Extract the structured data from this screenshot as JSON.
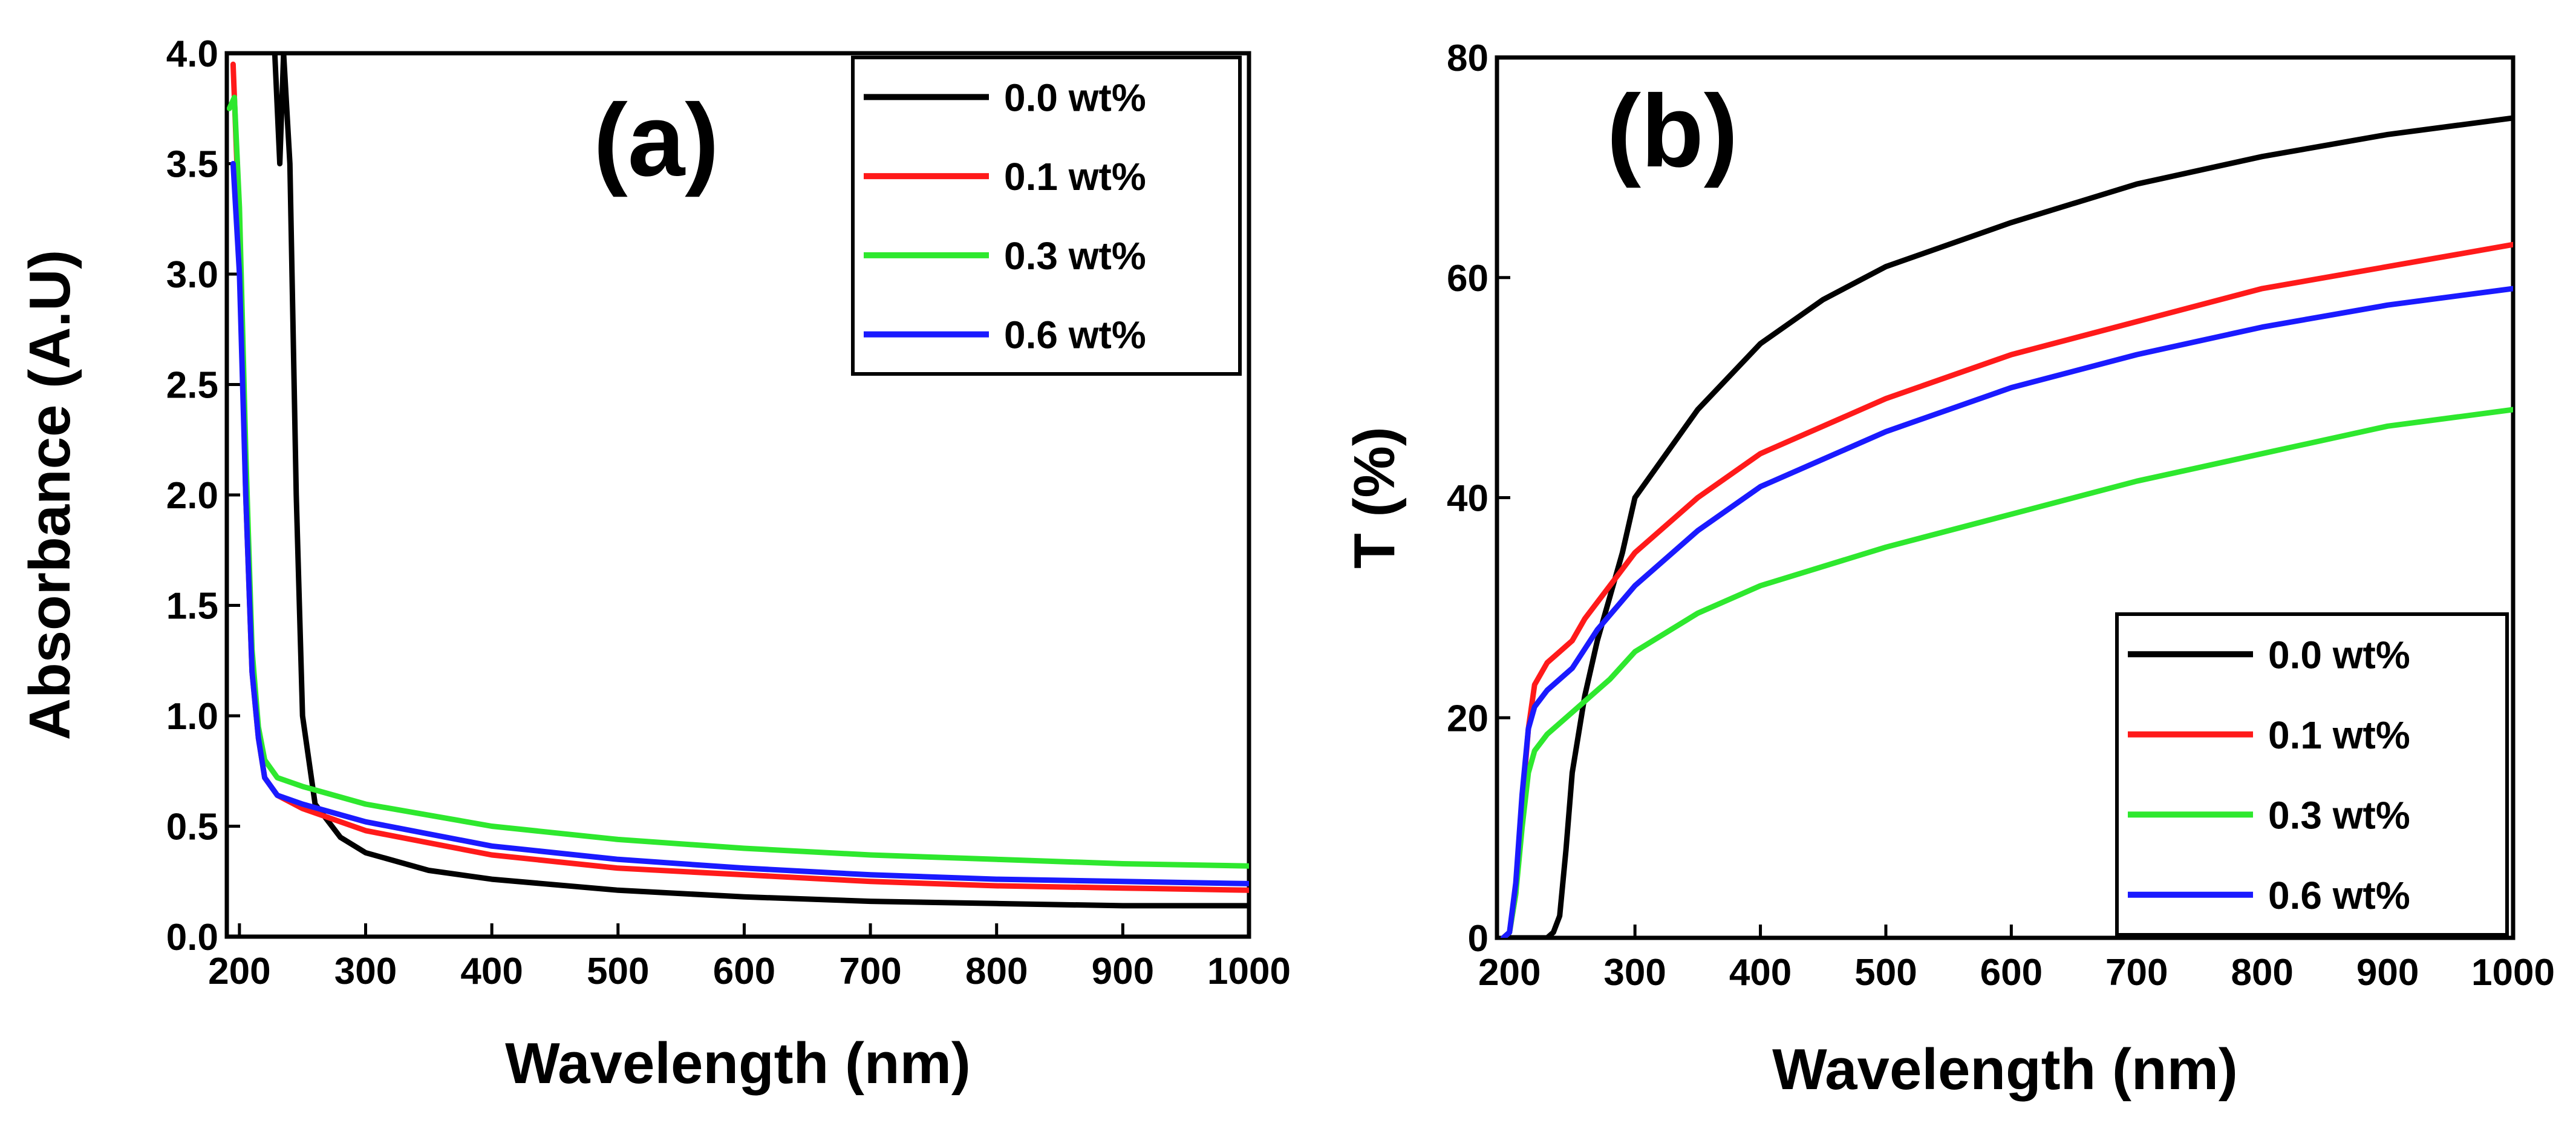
{
  "chart_data": [
    {
      "type": "line",
      "panel_label": "(a)",
      "xlabel": "Wavelength (nm)",
      "ylabel": "Absorbance (A.U)",
      "xlim": [
        190,
        1000
      ],
      "ylim": [
        0,
        4
      ],
      "x_ticks": [
        200,
        300,
        400,
        500,
        600,
        700,
        800,
        900,
        1000
      ],
      "y_ticks": [
        0.0,
        0.5,
        1.0,
        1.5,
        2.0,
        2.5,
        3.0,
        3.5,
        4.0
      ],
      "legend_position": "top-right",
      "series": [
        {
          "name": "0.0 wt%",
          "color": "#000000",
          "x": [
            228,
            232,
            235,
            240,
            245,
            250,
            260,
            280,
            300,
            350,
            400,
            500,
            600,
            700,
            800,
            900,
            1000
          ],
          "y": [
            4.0,
            3.5,
            4.0,
            3.5,
            2.0,
            1.0,
            0.6,
            0.45,
            0.38,
            0.3,
            0.26,
            0.21,
            0.18,
            0.16,
            0.15,
            0.14,
            0.14
          ]
        },
        {
          "name": "0.1 wt%",
          "color": "#ff1a1a",
          "x": [
            195,
            200,
            205,
            210,
            215,
            220,
            230,
            250,
            300,
            400,
            500,
            600,
            700,
            800,
            900,
            1000
          ],
          "y": [
            3.95,
            3.2,
            2.0,
            1.2,
            0.9,
            0.72,
            0.64,
            0.58,
            0.48,
            0.37,
            0.31,
            0.28,
            0.25,
            0.23,
            0.22,
            0.21
          ]
        },
        {
          "name": "0.3 wt%",
          "color": "#2ee82e",
          "x": [
            192,
            196,
            200,
            205,
            210,
            215,
            220,
            230,
            250,
            300,
            400,
            500,
            600,
            700,
            800,
            900,
            1000
          ],
          "y": [
            3.75,
            3.8,
            3.3,
            2.2,
            1.3,
            0.95,
            0.8,
            0.72,
            0.68,
            0.6,
            0.5,
            0.44,
            0.4,
            0.37,
            0.35,
            0.33,
            0.32
          ]
        },
        {
          "name": "0.6 wt%",
          "color": "#1a1aff",
          "x": [
            195,
            200,
            205,
            210,
            215,
            220,
            230,
            250,
            300,
            400,
            500,
            600,
            700,
            800,
            900,
            1000
          ],
          "y": [
            3.5,
            3.0,
            2.0,
            1.2,
            0.9,
            0.72,
            0.64,
            0.6,
            0.52,
            0.41,
            0.35,
            0.31,
            0.28,
            0.26,
            0.25,
            0.24
          ]
        }
      ]
    },
    {
      "type": "line",
      "panel_label": "(b)",
      "xlabel": "Wavelength (nm)",
      "ylabel": "T (%)",
      "xlim": [
        190,
        1000
      ],
      "ylim": [
        0,
        80
      ],
      "x_ticks": [
        200,
        300,
        400,
        500,
        600,
        700,
        800,
        900,
        1000
      ],
      "y_ticks": [
        0,
        20,
        40,
        60,
        80
      ],
      "legend_position": "bottom-right",
      "series": [
        {
          "name": "0.0 wt%",
          "color": "#000000",
          "x": [
            195,
            230,
            235,
            240,
            245,
            250,
            260,
            270,
            280,
            290,
            300,
            350,
            400,
            450,
            500,
            600,
            700,
            800,
            900,
            1000
          ],
          "y": [
            0,
            0,
            0.5,
            2,
            8,
            15,
            22,
            27,
            31,
            35,
            40,
            48,
            54,
            58,
            61,
            65,
            68.5,
            71,
            73,
            74.5
          ]
        },
        {
          "name": "0.1 wt%",
          "color": "#ff1a1a",
          "x": [
            195,
            200,
            205,
            210,
            215,
            220,
            230,
            240,
            250,
            260,
            280,
            300,
            350,
            400,
            500,
            600,
            700,
            800,
            900,
            1000
          ],
          "y": [
            0,
            0.5,
            4,
            12,
            19,
            23,
            25,
            26,
            27,
            29,
            32,
            35,
            40,
            44,
            49,
            53,
            56,
            59,
            61,
            63
          ]
        },
        {
          "name": "0.3 wt%",
          "color": "#2ee82e",
          "x": [
            195,
            200,
            205,
            210,
            215,
            220,
            230,
            250,
            280,
            300,
            350,
            400,
            500,
            600,
            700,
            800,
            900,
            1000
          ],
          "y": [
            0,
            0.5,
            4,
            10,
            15,
            17,
            18.5,
            20.5,
            23.5,
            26,
            29.5,
            32,
            35.5,
            38.5,
            41.5,
            44,
            46.5,
            48
          ]
        },
        {
          "name": "0.6 wt%",
          "color": "#1a1aff",
          "x": [
            195,
            200,
            205,
            210,
            215,
            220,
            230,
            250,
            270,
            300,
            350,
            400,
            500,
            600,
            700,
            800,
            900,
            1000
          ],
          "y": [
            0,
            0.5,
            5,
            13,
            19,
            21,
            22.5,
            24.5,
            28,
            32,
            37,
            41,
            46,
            50,
            53,
            55.5,
            57.5,
            59
          ]
        }
      ]
    }
  ]
}
